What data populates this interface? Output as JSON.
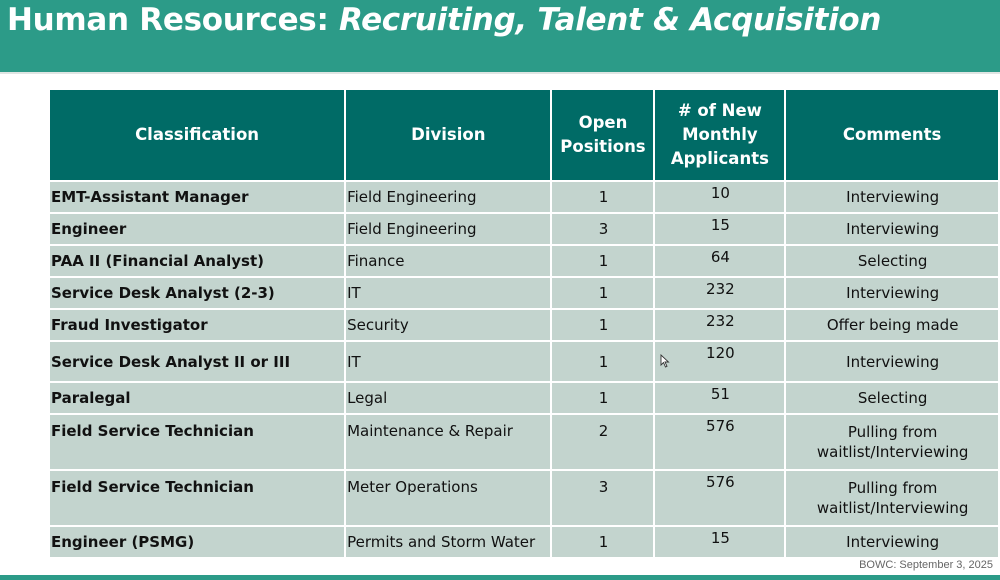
{
  "header": {
    "title_plain": "Human Resources: ",
    "title_italic": "Recruiting, Talent & Acquisition"
  },
  "table": {
    "columns": [
      "Classification",
      "Division",
      "Open Positions",
      "# of New Monthly Applicants",
      "Comments"
    ],
    "rows": [
      {
        "classification": "EMT-Assistant Manager",
        "division": "Field Engineering",
        "open": "1",
        "applicants": "10",
        "comments": "Interviewing"
      },
      {
        "classification": "Engineer",
        "division": "Field Engineering",
        "open": "3",
        "applicants": "15",
        "comments": "Interviewing"
      },
      {
        "classification": "PAA II (Financial Analyst)",
        "division": "Finance",
        "open": "1",
        "applicants": "64",
        "comments": "Selecting"
      },
      {
        "classification": "Service Desk Analyst (2-3)",
        "division": "IT",
        "open": "1",
        "applicants": "232",
        "comments": "Interviewing"
      },
      {
        "classification": "Fraud Investigator",
        "division": "Security",
        "open": "1",
        "applicants": "232",
        "comments": "Offer being made"
      },
      {
        "classification": "Service Desk Analyst II or III",
        "division": "IT",
        "open": "1",
        "applicants": "120",
        "comments": "Interviewing"
      },
      {
        "classification": "Paralegal",
        "division": "Legal",
        "open": "1",
        "applicants": "51",
        "comments": "Selecting"
      },
      {
        "classification": "Field Service Technician",
        "division": "Maintenance & Repair",
        "open": "2",
        "applicants": "576",
        "comments": "Pulling from waitlist/Interviewing"
      },
      {
        "classification": "Field Service Technician",
        "division": "Meter Operations",
        "open": "3",
        "applicants": "576",
        "comments": "Pulling from waitlist/Interviewing"
      },
      {
        "classification": "Engineer (PSMG)",
        "division": "Permits and Storm Water",
        "open": "1",
        "applicants": "15",
        "comments": "Interviewing"
      }
    ]
  },
  "footer": {
    "note": "BOWC: September 3, 2025"
  },
  "colors": {
    "header_bg": "#2c9b88",
    "table_header_bg": "#006b66",
    "row_bg": "#c3d4ce"
  },
  "icons": {
    "cursor": "mouse-pointer-icon"
  }
}
